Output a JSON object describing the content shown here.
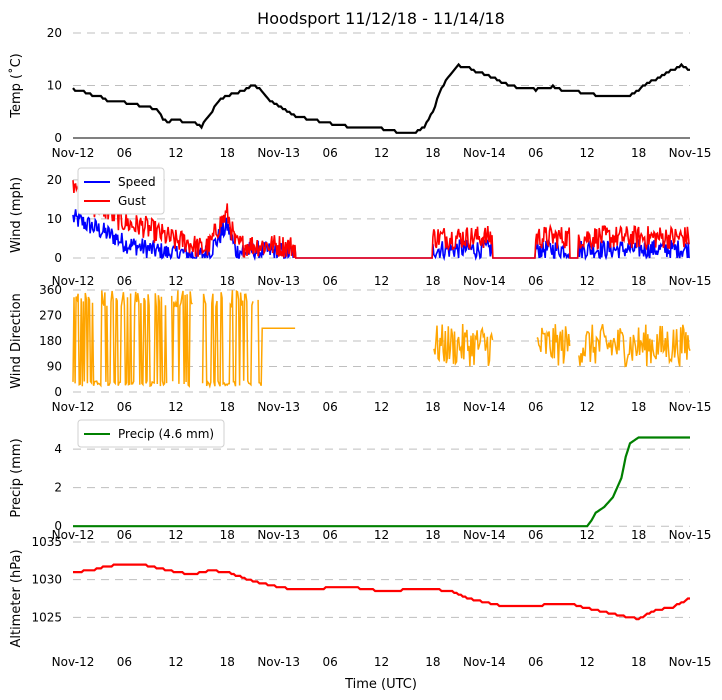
{
  "chart_data": {
    "type": "line",
    "title": "Hoodsport 11/12/18 - 11/14/18",
    "xlabel": "Time (UTC)",
    "x_range_hours": [
      0,
      72
    ],
    "x_ticks": [
      {
        "h": 0,
        "label": "Nov-12"
      },
      {
        "h": 6,
        "label": "06"
      },
      {
        "h": 12,
        "label": "12"
      },
      {
        "h": 18,
        "label": "18"
      },
      {
        "h": 24,
        "label": "Nov-13"
      },
      {
        "h": 30,
        "label": "06"
      },
      {
        "h": 36,
        "label": "12"
      },
      {
        "h": 42,
        "label": "18"
      },
      {
        "h": 48,
        "label": "Nov-14"
      },
      {
        "h": 54,
        "label": "06"
      },
      {
        "h": 60,
        "label": "12"
      },
      {
        "h": 66,
        "label": "18"
      },
      {
        "h": 72,
        "label": "Nov-15"
      }
    ],
    "panels": [
      {
        "id": "temp",
        "ylabel": "Temp ($^\\circ$C)",
        "ylabel_display": "Temp (˚C)",
        "ylim": [
          0,
          20
        ],
        "yticks": [
          0,
          10,
          20
        ],
        "series": [
          {
            "name": "Temp",
            "color": "#000000",
            "style": "line",
            "x": [
              0,
              1,
              2,
              3,
              4,
              5,
              6,
              7,
              8,
              9,
              10,
              10.5,
              11,
              12,
              13,
              14,
              15,
              16,
              17,
              18,
              19,
              20,
              21,
              22,
              23,
              24,
              25,
              26,
              27,
              28,
              29,
              30,
              31,
              32,
              33,
              34,
              35,
              36,
              37,
              38,
              39,
              40,
              41,
              42,
              43,
              44,
              45,
              46,
              47,
              48,
              49,
              50,
              51,
              52,
              53,
              54,
              55,
              56,
              57,
              58,
              59,
              60,
              61,
              62,
              63,
              64,
              65,
              66,
              67,
              68,
              69,
              70,
              71,
              72
            ],
            "y": [
              9.3,
              9,
              8.3,
              8,
              7.2,
              7,
              6.8,
              6.5,
              6,
              5.8,
              5.2,
              3.5,
              3,
              3.5,
              3,
              3,
              2.2,
              4.5,
              7,
              8,
              8.5,
              9,
              10.2,
              9,
              7.2,
              6,
              5,
              4.2,
              3.8,
              3.5,
              3,
              2.8,
              2.5,
              2.2,
              2,
              2,
              2,
              1.8,
              1.5,
              1,
              0.8,
              1,
              2,
              5,
              9.5,
              12,
              13.8,
              13.5,
              12.5,
              12.2,
              11.5,
              10.5,
              10,
              9.5,
              9.5,
              9.2,
              9.5,
              9.8,
              9.2,
              9,
              8.8,
              8.5,
              8.2,
              8,
              8,
              8,
              8.2,
              9,
              10.5,
              11,
              12,
              13,
              13.8,
              12.8
            ]
          }
        ]
      },
      {
        "id": "wind",
        "ylabel": "Wind (mph)",
        "ylim": [
          0,
          22
        ],
        "yticks": [
          0,
          10,
          20
        ],
        "legend": [
          "Speed",
          "Gust"
        ],
        "series": [
          {
            "name": "Speed",
            "color": "#0000ff",
            "style": "noisy",
            "x": [
              0,
              1,
              2,
              3,
              4,
              5,
              6,
              7,
              8,
              9,
              10,
              11,
              12,
              13,
              14,
              15,
              16,
              17,
              18,
              19,
              20,
              21,
              22,
              23,
              26
            ],
            "y": [
              10,
              9,
              8,
              7,
              6,
              5,
              3.5,
              3,
              2.5,
              2,
              1.5,
              1,
              1,
              1,
              0.5,
              0.5,
              1.5,
              5,
              8,
              1.5,
              1.5,
              1.5,
              1.5,
              1.5,
              1
            ],
            "noise": 2.5,
            "segments": [
              [
                0,
                26
              ],
              [
                42,
                49
              ],
              [
                54,
                58
              ],
              [
                59,
                72
              ]
            ]
          },
          {
            "name": "Gust",
            "color": "#ff0000",
            "style": "noisy",
            "x": [
              0,
              0.5,
              1,
              2,
              3,
              4,
              5,
              6,
              7,
              8,
              9,
              10,
              11,
              12,
              13,
              14,
              15,
              16,
              17,
              18,
              19,
              20,
              21,
              22,
              23,
              26
            ],
            "y": [
              19,
              20,
              15,
              13,
              13,
              12,
              10,
              9,
              8,
              8,
              7,
              6,
              5,
              4,
              4,
              3,
              2,
              3,
              8,
              11,
              3,
              3,
              3,
              3,
              3,
              2.5
            ],
            "noise": 3,
            "segments": [
              [
                0,
                26
              ],
              [
                42,
                49
              ],
              [
                54,
                58
              ],
              [
                59,
                72
              ]
            ]
          }
        ]
      },
      {
        "id": "dir",
        "ylabel": "Wind Direction",
        "ylim": [
          0,
          360
        ],
        "yticks": [
          0,
          90,
          180,
          270,
          360
        ],
        "series": [
          {
            "name": "Direction",
            "color": "#ffa500",
            "style": "direction",
            "segments": [
              [
                0,
                11
              ],
              [
                11.5,
                14
              ],
              [
                15,
                21
              ],
              [
                21.5,
                26
              ],
              [
                42,
                49
              ],
              [
                54,
                58
              ],
              [
                59,
                72
              ]
            ]
          }
        ]
      },
      {
        "id": "precip",
        "ylabel": "Precip (mm)",
        "ylim": [
          -0.3,
          5.3
        ],
        "yticks": [
          0,
          2,
          4
        ],
        "legend": [
          "Precip (4.6 mm)"
        ],
        "series": [
          {
            "name": "Precip (4.6 mm)",
            "color": "#008000",
            "style": "line",
            "x": [
              0,
              60,
              60.5,
              61,
              62,
              63,
              64,
              64.5,
              65,
              66,
              67,
              72
            ],
            "y": [
              0,
              0,
              0.3,
              0.7,
              1,
              1.5,
              2.5,
              3.6,
              4.3,
              4.6,
              4.6,
              4.6
            ]
          }
        ]
      },
      {
        "id": "alt",
        "ylabel": "Altimeter (hPa)",
        "ylim": [
          1020,
          1035
        ],
        "yticks": [
          1025,
          1030,
          1035
        ],
        "series": [
          {
            "name": "Altimeter",
            "color": "#ff0000",
            "style": "line",
            "x": [
              0,
              2,
              4,
              6,
              8,
              10,
              12,
              14,
              16,
              18,
              20,
              22,
              24,
              26,
              28,
              30,
              32,
              34,
              36,
              38,
              40,
              42,
              44,
              46,
              48,
              50,
              52,
              54,
              56,
              58,
              60,
              62,
              64,
              66,
              68,
              70,
              72
            ],
            "y": [
              1031,
              1031.2,
              1031.8,
              1032,
              1032,
              1031.5,
              1031,
              1030.7,
              1031.2,
              1031,
              1030.2,
              1029.5,
              1029,
              1028.7,
              1028.8,
              1028.9,
              1029,
              1028.8,
              1028.5,
              1028.6,
              1028.7,
              1028.7,
              1028.5,
              1027.5,
              1027,
              1026.5,
              1026.5,
              1026.5,
              1026.8,
              1026.8,
              1026.2,
              1025.7,
              1025.2,
              1024.8,
              1026,
              1026.3,
              1027.6
            ]
          }
        ]
      }
    ]
  }
}
